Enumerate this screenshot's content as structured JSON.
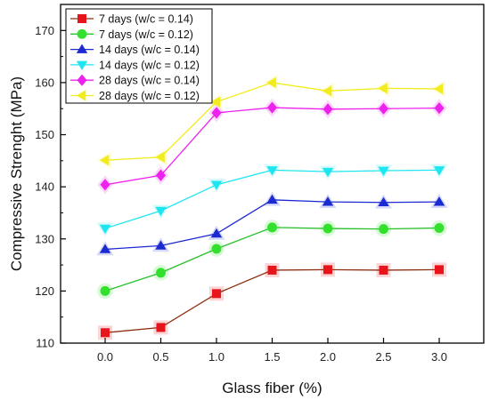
{
  "chart_data": {
    "type": "line",
    "title": "",
    "xlabel": "Glass fiber (%)",
    "ylabel": "Compressive Strenght (MPa)",
    "xlim": [
      -0.4,
      3.4
    ],
    "ylim": [
      110,
      175
    ],
    "x_ticks": [
      0.0,
      0.5,
      1.0,
      1.5,
      2.0,
      2.5,
      3.0
    ],
    "x_tick_labels": [
      "0.0",
      "0.5",
      "1.0",
      "1.5",
      "2.0",
      "2.5",
      "3.0"
    ],
    "y_ticks": [
      110,
      120,
      130,
      140,
      150,
      160,
      170
    ],
    "y_tick_labels": [
      "110",
      "120",
      "130",
      "140",
      "150",
      "160",
      "170"
    ],
    "grid": false,
    "legend_position": "top-left",
    "x": [
      0.0,
      0.5,
      1.0,
      1.5,
      2.0,
      2.5,
      3.0
    ],
    "series": [
      {
        "name": "7 days (w/c = 0.14)",
        "marker": "square",
        "marker_color": "#e8141c",
        "line_color": "#8b2e10",
        "values": [
          112.0,
          113.0,
          119.5,
          124.0,
          124.1,
          124.0,
          124.1
        ]
      },
      {
        "name": "7 days (w/c = 0.12)",
        "marker": "circle",
        "marker_color": "#33e02d",
        "line_color": "#28c02a",
        "values": [
          120.0,
          123.5,
          128.1,
          132.2,
          132.0,
          131.9,
          132.1
        ]
      },
      {
        "name": "14 days (w/c = 0.14)",
        "marker": "triangle-up",
        "marker_color": "#1b2bd1",
        "line_color": "#1b2bd1",
        "values": [
          128.0,
          128.7,
          131.0,
          137.5,
          137.1,
          137.0,
          137.1
        ]
      },
      {
        "name": "14 days (w/c = 0.12)",
        "marker": "triangle-down",
        "marker_color": "#1ee6f0",
        "line_color": "#1ee6f0",
        "values": [
          132.0,
          135.4,
          140.4,
          143.2,
          142.9,
          143.1,
          143.2
        ]
      },
      {
        "name": "28 days (w/c = 0.14)",
        "marker": "diamond",
        "marker_color": "#ee22ee",
        "line_color": "#ee22ee",
        "values": [
          140.4,
          142.2,
          154.2,
          155.2,
          154.9,
          155.0,
          155.1
        ]
      },
      {
        "name": "28 days (w/c = 0.12)",
        "marker": "triangle-left",
        "marker_color": "#f2ec1c",
        "line_color": "#f2ec1c",
        "values": [
          145.1,
          145.7,
          156.3,
          160.0,
          158.4,
          158.9,
          158.8
        ]
      }
    ]
  }
}
